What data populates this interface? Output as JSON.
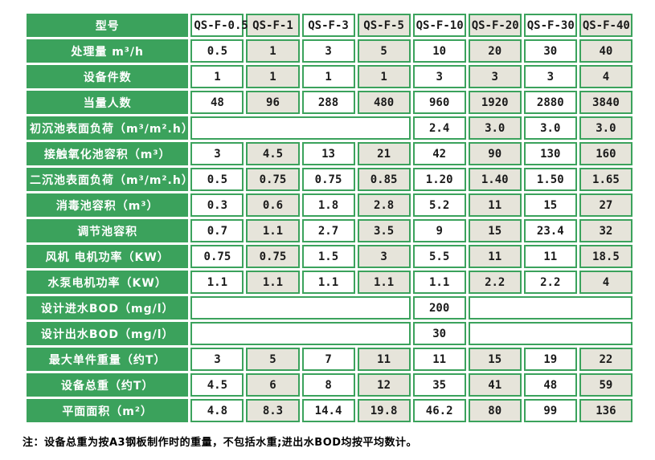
{
  "colors": {
    "green": "#3BA25C",
    "cell_alt_beige": "#E6E4DA",
    "cell_white": "#FFFFFF",
    "label_text": "#FFFFFF",
    "value_text": "#1A1A1A"
  },
  "table": {
    "header": {
      "label": "型号",
      "models": [
        "QS-F-0.5",
        "QS-F-1",
        "QS-F-3",
        "QS-F-5",
        "QS-F-10",
        "QS-F-20",
        "QS-F-30",
        "QS-F-40"
      ]
    },
    "rows": [
      {
        "label": "处理量 m³/h",
        "values": [
          "0.5",
          "1",
          "3",
          "5",
          "10",
          "20",
          "30",
          "40"
        ]
      },
      {
        "label": "设备件数",
        "values": [
          "1",
          "1",
          "1",
          "1",
          "3",
          "3",
          "3",
          "4"
        ]
      },
      {
        "label": "当量人数",
        "values": [
          "48",
          "96",
          "288",
          "480",
          "960",
          "1920",
          "2880",
          "3840"
        ]
      },
      {
        "label": "初沉池表面负荷（m³/m².h）",
        "type": "merged-left",
        "empty_span": 4,
        "values": [
          "2.4",
          "3.0",
          "3.0",
          "3.0"
        ]
      },
      {
        "label": "接触氧化池容积（m³）",
        "values": [
          "3",
          "4.5",
          "13",
          "21",
          "42",
          "90",
          "130",
          "160"
        ]
      },
      {
        "label": "二沉池表面负荷（m³/m².h）",
        "values": [
          "0.5",
          "0.75",
          "0.75",
          "0.85",
          "1.20",
          "1.40",
          "1.50",
          "1.65"
        ]
      },
      {
        "label": "消毒池容积（m³）",
        "values": [
          "0.3",
          "0.6",
          "1.8",
          "2.8",
          "5.2",
          "11",
          "15",
          "27"
        ]
      },
      {
        "label": "调节池容积",
        "values": [
          "0.7",
          "1.1",
          "2.7",
          "3.5",
          "9",
          "15",
          "23.4",
          "32"
        ]
      },
      {
        "label": "风机 电机功率（KW）",
        "values": [
          "0.75",
          "0.75",
          "1.5",
          "3",
          "5.5",
          "11",
          "11",
          "18.5"
        ]
      },
      {
        "label": "水泵电机功率（KW）",
        "values": [
          "1.1",
          "1.1",
          "1.1",
          "1.1",
          "1.1",
          "2.2",
          "2.2",
          "4"
        ]
      },
      {
        "label": "设计进水BOD（mg/l）",
        "type": "single-value",
        "left_span": 4,
        "value": "200",
        "right_span": 3
      },
      {
        "label": "设计出水BOD（mg/l）",
        "type": "single-value",
        "left_span": 4,
        "value": "30",
        "right_span": 3
      },
      {
        "label": "最大单件重量（约T）",
        "values": [
          "3",
          "5",
          "7",
          "11",
          "11",
          "15",
          "19",
          "22"
        ]
      },
      {
        "label": "设备总重（约T）",
        "values": [
          "4.5",
          "6",
          "8",
          "12",
          "35",
          "41",
          "48",
          "59"
        ]
      },
      {
        "label": "平面面积（m²）",
        "values": [
          "4.8",
          "8.3",
          "14.4",
          "19.8",
          "46.2",
          "80",
          "99",
          "136"
        ]
      }
    ],
    "note": "注：设备总重为按A3钢板制作时的重量，不包括水重;进出水BOD均按平均数计。"
  }
}
